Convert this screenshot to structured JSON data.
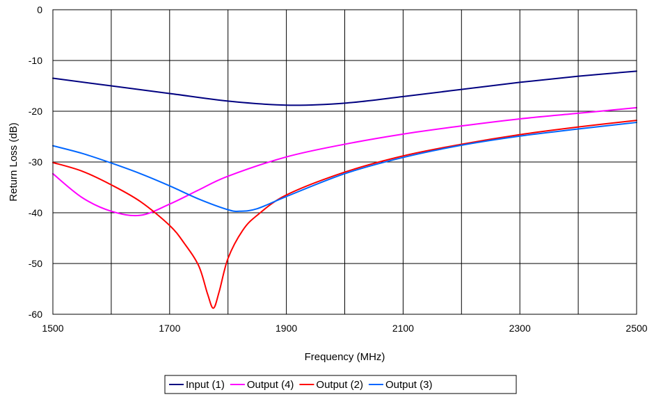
{
  "chart_data": {
    "type": "line",
    "title": "",
    "xlabel": "Frequency (MHz)",
    "ylabel": "Return Loss (dB)",
    "xlim": [
      1500,
      2500
    ],
    "ylim": [
      -60,
      0
    ],
    "x_ticks": [
      1500,
      1700,
      1900,
      2100,
      2300,
      2500
    ],
    "y_ticks": [
      0,
      -10,
      -20,
      -30,
      -40,
      -50,
      -60
    ],
    "x_tick_labels": [
      "1500",
      "1700",
      "1900",
      "2100",
      "2300",
      "2500"
    ],
    "y_tick_labels": [
      "0",
      "-10",
      "-20",
      "-30",
      "-40",
      "-50",
      "-60"
    ],
    "grid": true,
    "vertical_grid_step": 100,
    "legend_position": "bottom",
    "series": [
      {
        "name": "Input (1)",
        "color": "#000080",
        "x": [
          1500,
          1600,
          1700,
          1800,
          1900,
          2000,
          2100,
          2200,
          2300,
          2400,
          2500
        ],
        "y": [
          -13.5,
          -15.0,
          -16.5,
          -18.0,
          -18.8,
          -18.4,
          -17.1,
          -15.7,
          -14.3,
          -13.1,
          -12.1
        ]
      },
      {
        "name": "Output (4)",
        "color": "#FF00FF",
        "x": [
          1500,
          1550,
          1600,
          1650,
          1700,
          1750,
          1800,
          1900,
          2000,
          2100,
          2200,
          2300,
          2400,
          2500
        ],
        "y": [
          -32.3,
          -37.0,
          -39.7,
          -40.5,
          -38.3,
          -35.5,
          -32.8,
          -29.0,
          -26.5,
          -24.5,
          -22.9,
          -21.5,
          -20.4,
          -19.3
        ]
      },
      {
        "name": "Output (2)",
        "color": "#FF0000",
        "x": [
          1500,
          1550,
          1600,
          1650,
          1700,
          1725,
          1750,
          1765,
          1775,
          1785,
          1800,
          1825,
          1850,
          1900,
          2000,
          2100,
          2200,
          2300,
          2400,
          2500
        ],
        "y": [
          -30.1,
          -31.8,
          -34.5,
          -37.8,
          -42.5,
          -46.0,
          -50.5,
          -56.0,
          -58.8,
          -55.5,
          -49.0,
          -43.5,
          -40.5,
          -36.5,
          -32.0,
          -28.8,
          -26.5,
          -24.6,
          -23.1,
          -21.8
        ]
      },
      {
        "name": "Output (3)",
        "color": "#0066FF",
        "x": [
          1500,
          1550,
          1600,
          1650,
          1700,
          1750,
          1800,
          1820,
          1850,
          1900,
          2000,
          2100,
          2200,
          2300,
          2400,
          2500
        ],
        "y": [
          -26.8,
          -28.3,
          -30.2,
          -32.3,
          -34.7,
          -37.3,
          -39.4,
          -39.7,
          -39.2,
          -36.8,
          -32.3,
          -29.1,
          -26.7,
          -24.9,
          -23.5,
          -22.2
        ]
      }
    ]
  }
}
